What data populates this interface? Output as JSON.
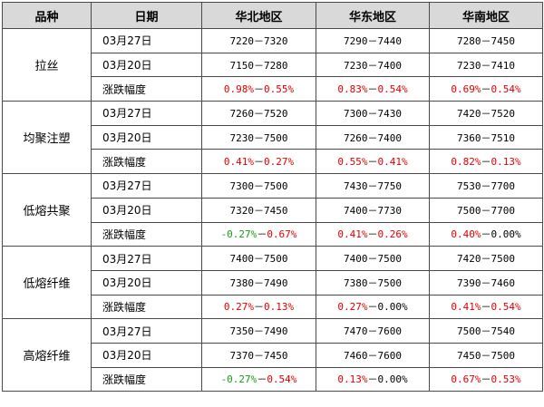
{
  "headers": [
    "品种",
    "日期",
    "华北地区",
    "华东地区",
    "华南地区"
  ],
  "groups": [
    {
      "product": "拉丝",
      "rows": [
        {
          "date": "03月27日",
          "values": [
            "7220－7320",
            "7290－7440",
            "7280－7450"
          ]
        },
        {
          "date": "03月20日",
          "values": [
            "7150－7280",
            "7230－7400",
            "7230－7410"
          ]
        }
      ],
      "change_label": "涨跌幅度",
      "changes": [
        [
          {
            "text": "0.98%",
            "tone": "pos"
          },
          {
            "text": "－",
            "tone": "flat"
          },
          {
            "text": "0.55%",
            "tone": "pos"
          }
        ],
        [
          {
            "text": "0.83%",
            "tone": "pos"
          },
          {
            "text": "－",
            "tone": "flat"
          },
          {
            "text": "0.54%",
            "tone": "pos"
          }
        ],
        [
          {
            "text": "0.69%",
            "tone": "pos"
          },
          {
            "text": "－",
            "tone": "flat"
          },
          {
            "text": "0.54%",
            "tone": "pos"
          }
        ]
      ]
    },
    {
      "product": "均聚注塑",
      "rows": [
        {
          "date": "03月27日",
          "values": [
            "7260－7520",
            "7300－7430",
            "7420－7520"
          ]
        },
        {
          "date": "03月20日",
          "values": [
            "7230－7500",
            "7260－7400",
            "7360－7510"
          ]
        }
      ],
      "change_label": "涨跌幅度",
      "changes": [
        [
          {
            "text": "0.41%",
            "tone": "pos"
          },
          {
            "text": "－",
            "tone": "flat"
          },
          {
            "text": "0.27%",
            "tone": "pos"
          }
        ],
        [
          {
            "text": "0.55%",
            "tone": "pos"
          },
          {
            "text": "－",
            "tone": "flat"
          },
          {
            "text": "0.41%",
            "tone": "pos"
          }
        ],
        [
          {
            "text": "0.82%",
            "tone": "pos"
          },
          {
            "text": "－",
            "tone": "flat"
          },
          {
            "text": "0.13%",
            "tone": "pos"
          }
        ]
      ]
    },
    {
      "product": "低熔共聚",
      "rows": [
        {
          "date": "03月27日",
          "values": [
            "7300－7500",
            "7430－7750",
            "7530－7700"
          ]
        },
        {
          "date": "03月20日",
          "values": [
            "7320－7450",
            "7400－7730",
            "7500－7700"
          ]
        }
      ],
      "change_label": "涨跌幅度",
      "changes": [
        [
          {
            "text": "-0.27%",
            "tone": "neg"
          },
          {
            "text": "－",
            "tone": "flat"
          },
          {
            "text": "0.67%",
            "tone": "pos"
          }
        ],
        [
          {
            "text": "0.41%",
            "tone": "pos"
          },
          {
            "text": "－",
            "tone": "flat"
          },
          {
            "text": "0.26%",
            "tone": "pos"
          }
        ],
        [
          {
            "text": "0.40%",
            "tone": "pos"
          },
          {
            "text": "－",
            "tone": "flat"
          },
          {
            "text": "0.00%",
            "tone": "flat"
          }
        ]
      ]
    },
    {
      "product": "低熔纤维",
      "rows": [
        {
          "date": "03月27日",
          "values": [
            "7400－7500",
            "7400－7500",
            "7420－7500"
          ]
        },
        {
          "date": "03月20日",
          "values": [
            "7380－7490",
            "7380－7500",
            "7390－7460"
          ]
        }
      ],
      "change_label": "涨跌幅度",
      "changes": [
        [
          {
            "text": "0.27%",
            "tone": "pos"
          },
          {
            "text": "－",
            "tone": "flat"
          },
          {
            "text": "0.13%",
            "tone": "pos"
          }
        ],
        [
          {
            "text": "0.27%",
            "tone": "pos"
          },
          {
            "text": "－",
            "tone": "flat"
          },
          {
            "text": "0.00%",
            "tone": "flat"
          }
        ],
        [
          {
            "text": "0.41%",
            "tone": "pos"
          },
          {
            "text": "－",
            "tone": "flat"
          },
          {
            "text": "0.54%",
            "tone": "pos"
          }
        ]
      ]
    },
    {
      "product": "高熔纤维",
      "rows": [
        {
          "date": "03月27日",
          "values": [
            "7350－7490",
            "7470－7600",
            "7500－7540"
          ]
        },
        {
          "date": "03月20日",
          "values": [
            "7370－7450",
            "7460－7600",
            "7450－7500"
          ]
        }
      ],
      "change_label": "涨跌幅度",
      "changes": [
        [
          {
            "text": "-0.27%",
            "tone": "neg"
          },
          {
            "text": "－",
            "tone": "flat"
          },
          {
            "text": "0.54%",
            "tone": "pos"
          }
        ],
        [
          {
            "text": "0.13%",
            "tone": "pos"
          },
          {
            "text": "－",
            "tone": "flat"
          },
          {
            "text": "0.00%",
            "tone": "flat"
          }
        ],
        [
          {
            "text": "0.67%",
            "tone": "pos"
          },
          {
            "text": "－",
            "tone": "flat"
          },
          {
            "text": "0.53%",
            "tone": "pos"
          }
        ]
      ]
    }
  ]
}
